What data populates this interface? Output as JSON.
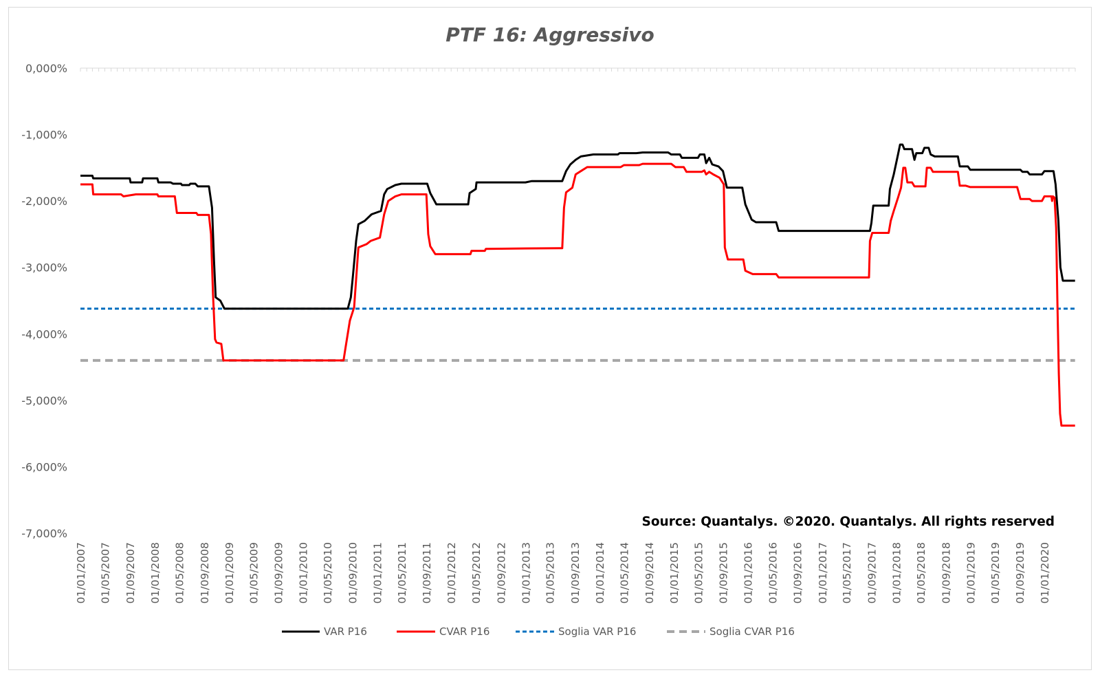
{
  "chart_data": {
    "type": "line",
    "title": "PTF 16: Aggressivo",
    "source_note": "Source: Quantalys. ©2020. Quantalys. All rights reserved",
    "y_axis": {
      "range": [
        -7,
        0
      ],
      "unit": "%",
      "tick_values": [
        0,
        -1,
        -2,
        -3,
        -4,
        -5,
        -6,
        -7
      ],
      "tick_labels": [
        "0,000%",
        "-1,000%",
        "-2,000%",
        "-3,000%",
        "-4,000%",
        "-5,000%",
        "-6,000%",
        "-7,000%"
      ]
    },
    "x_axis": {
      "range": [
        "2007-01-01",
        "2020-06-01"
      ],
      "tick_labels": [
        "01/01/2007",
        "01/05/2007",
        "01/09/2007",
        "01/01/2008",
        "01/05/2008",
        "01/09/2008",
        "01/01/2009",
        "01/05/2009",
        "01/09/2009",
        "01/01/2010",
        "01/05/2010",
        "01/09/2010",
        "01/01/2011",
        "01/05/2011",
        "01/09/2011",
        "01/01/2012",
        "01/05/2012",
        "01/09/2012",
        "01/01/2013",
        "01/05/2013",
        "01/09/2013",
        "01/01/2014",
        "01/05/2014",
        "01/09/2014",
        "01/01/2015",
        "01/05/2015",
        "01/09/2015",
        "01/01/2016",
        "01/05/2016",
        "01/09/2016",
        "01/01/2017",
        "01/05/2017",
        "01/09/2017",
        "01/01/2018",
        "01/05/2018",
        "01/09/2018",
        "01/01/2019",
        "01/05/2019",
        "01/09/2019",
        "01/01/2020"
      ]
    },
    "legend_position": "bottom",
    "grid": false,
    "series": [
      {
        "name": "VAR  P16",
        "color": "#000000",
        "style": "solid",
        "points": [
          [
            "2007-01-01",
            -1.62
          ],
          [
            "2007-03-01",
            -1.62
          ],
          [
            "2007-03-05",
            -1.66
          ],
          [
            "2007-09-01",
            -1.66
          ],
          [
            "2007-09-05",
            -1.72
          ],
          [
            "2007-11-01",
            -1.72
          ],
          [
            "2007-11-05",
            -1.66
          ],
          [
            "2008-01-15",
            -1.66
          ],
          [
            "2008-01-20",
            -1.72
          ],
          [
            "2008-03-20",
            -1.72
          ],
          [
            "2008-04-01",
            -1.74
          ],
          [
            "2008-05-10",
            -1.74
          ],
          [
            "2008-05-15",
            -1.76
          ],
          [
            "2008-06-20",
            -1.76
          ],
          [
            "2008-06-25",
            -1.74
          ],
          [
            "2008-07-20",
            -1.74
          ],
          [
            "2008-08-01",
            -1.78
          ],
          [
            "2008-09-25",
            -1.78
          ],
          [
            "2008-10-10",
            -2.1
          ],
          [
            "2008-10-20",
            -2.9
          ],
          [
            "2008-10-28",
            -3.45
          ],
          [
            "2008-11-20",
            -3.5
          ],
          [
            "2008-12-10",
            -3.62
          ],
          [
            "2010-08-10",
            -3.62
          ],
          [
            "2010-08-25",
            -3.45
          ],
          [
            "2010-09-05",
            -3.1
          ],
          [
            "2010-09-20",
            -2.6
          ],
          [
            "2010-10-01",
            -2.35
          ],
          [
            "2010-11-01",
            -2.3
          ],
          [
            "2010-12-05",
            -2.2
          ],
          [
            "2011-01-20",
            -2.15
          ],
          [
            "2011-02-05",
            -1.9
          ],
          [
            "2011-02-20",
            -1.82
          ],
          [
            "2011-04-01",
            -1.76
          ],
          [
            "2011-05-01",
            -1.74
          ],
          [
            "2011-09-05",
            -1.74
          ],
          [
            "2011-09-20",
            -1.88
          ],
          [
            "2011-10-20",
            -2.05
          ],
          [
            "2012-03-25",
            -2.05
          ],
          [
            "2012-04-01",
            -1.88
          ],
          [
            "2012-05-01",
            -1.82
          ],
          [
            "2012-05-05",
            -1.72
          ],
          [
            "2013-01-01",
            -1.72
          ],
          [
            "2013-02-01",
            -1.7
          ],
          [
            "2013-07-01",
            -1.7
          ],
          [
            "2013-07-20",
            -1.55
          ],
          [
            "2013-08-10",
            -1.45
          ],
          [
            "2013-09-05",
            -1.38
          ],
          [
            "2013-10-01",
            -1.33
          ],
          [
            "2013-12-01",
            -1.3
          ],
          [
            "2014-04-01",
            -1.3
          ],
          [
            "2014-04-10",
            -1.28
          ],
          [
            "2014-07-01",
            -1.28
          ],
          [
            "2014-08-01",
            -1.27
          ],
          [
            "2014-12-05",
            -1.27
          ],
          [
            "2014-12-20",
            -1.3
          ],
          [
            "2015-02-01",
            -1.3
          ],
          [
            "2015-02-10",
            -1.35
          ],
          [
            "2015-05-01",
            -1.35
          ],
          [
            "2015-05-10",
            -1.3
          ],
          [
            "2015-06-01",
            -1.3
          ],
          [
            "2015-06-10",
            -1.43
          ],
          [
            "2015-06-25",
            -1.35
          ],
          [
            "2015-07-10",
            -1.45
          ],
          [
            "2015-08-10",
            -1.48
          ],
          [
            "2015-09-01",
            -1.55
          ],
          [
            "2015-09-20",
            -1.8
          ],
          [
            "2015-12-05",
            -1.8
          ],
          [
            "2015-12-20",
            -2.05
          ],
          [
            "2016-01-20",
            -2.28
          ],
          [
            "2016-02-10",
            -2.32
          ],
          [
            "2016-05-20",
            -2.32
          ],
          [
            "2016-06-01",
            -2.45
          ],
          [
            "2017-08-25",
            -2.45
          ],
          [
            "2017-09-01",
            -2.33
          ],
          [
            "2017-09-10",
            -2.07
          ],
          [
            "2017-11-25",
            -2.07
          ],
          [
            "2017-12-01",
            -1.82
          ],
          [
            "2017-12-20",
            -1.6
          ],
          [
            "2018-01-10",
            -1.3
          ],
          [
            "2018-01-20",
            -1.15
          ],
          [
            "2018-02-01",
            -1.15
          ],
          [
            "2018-02-10",
            -1.22
          ],
          [
            "2018-03-20",
            -1.22
          ],
          [
            "2018-04-01",
            -1.38
          ],
          [
            "2018-04-10",
            -1.28
          ],
          [
            "2018-05-10",
            -1.28
          ],
          [
            "2018-05-20",
            -1.2
          ],
          [
            "2018-06-10",
            -1.2
          ],
          [
            "2018-06-20",
            -1.3
          ],
          [
            "2018-07-10",
            -1.33
          ],
          [
            "2018-11-01",
            -1.33
          ],
          [
            "2018-11-10",
            -1.48
          ],
          [
            "2018-12-20",
            -1.48
          ],
          [
            "2019-01-01",
            -1.53
          ],
          [
            "2019-09-05",
            -1.53
          ],
          [
            "2019-09-15",
            -1.56
          ],
          [
            "2019-10-10",
            -1.56
          ],
          [
            "2019-10-20",
            -1.6
          ],
          [
            "2019-12-20",
            -1.6
          ],
          [
            "2020-01-01",
            -1.55
          ],
          [
            "2020-02-15",
            -1.55
          ],
          [
            "2020-02-25",
            -1.75
          ],
          [
            "2020-03-10",
            -2.3
          ],
          [
            "2020-03-20",
            -3.0
          ],
          [
            "2020-04-01",
            -3.2
          ],
          [
            "2020-05-31",
            -3.2
          ]
        ]
      },
      {
        "name": "CVAR  P16",
        "color": "#ff0000",
        "style": "solid",
        "points": [
          [
            "2007-01-01",
            -1.75
          ],
          [
            "2007-03-01",
            -1.75
          ],
          [
            "2007-03-05",
            -1.9
          ],
          [
            "2007-07-20",
            -1.9
          ],
          [
            "2007-08-01",
            -1.93
          ],
          [
            "2007-10-01",
            -1.9
          ],
          [
            "2008-01-15",
            -1.9
          ],
          [
            "2008-01-20",
            -1.93
          ],
          [
            "2008-04-10",
            -1.93
          ],
          [
            "2008-04-20",
            -2.18
          ],
          [
            "2008-07-25",
            -2.18
          ],
          [
            "2008-08-01",
            -2.21
          ],
          [
            "2008-09-25",
            -2.21
          ],
          [
            "2008-10-05",
            -2.5
          ],
          [
            "2008-10-15",
            -3.4
          ],
          [
            "2008-10-25",
            -4.08
          ],
          [
            "2008-11-01",
            -4.13
          ],
          [
            "2008-11-25",
            -4.15
          ],
          [
            "2008-12-05",
            -4.4
          ],
          [
            "2010-07-20",
            -4.4
          ],
          [
            "2010-07-30",
            -4.2
          ],
          [
            "2010-08-20",
            -3.8
          ],
          [
            "2010-09-10",
            -3.6
          ],
          [
            "2010-10-01",
            -2.7
          ],
          [
            "2010-11-10",
            -2.65
          ],
          [
            "2010-12-01",
            -2.6
          ],
          [
            "2011-01-15",
            -2.55
          ],
          [
            "2011-02-05",
            -2.2
          ],
          [
            "2011-02-25",
            -2.0
          ],
          [
            "2011-04-01",
            -1.93
          ],
          [
            "2011-05-01",
            -1.9
          ],
          [
            "2011-09-01",
            -1.9
          ],
          [
            "2011-09-10",
            -2.5
          ],
          [
            "2011-09-20",
            -2.68
          ],
          [
            "2011-10-15",
            -2.8
          ],
          [
            "2012-04-05",
            -2.8
          ],
          [
            "2012-04-10",
            -2.75
          ],
          [
            "2012-06-15",
            -2.75
          ],
          [
            "2012-06-20",
            -2.72
          ],
          [
            "2013-06-15",
            -2.71
          ],
          [
            "2013-07-01",
            -2.71
          ],
          [
            "2013-07-10",
            -2.1
          ],
          [
            "2013-07-20",
            -1.87
          ],
          [
            "2013-08-20",
            -1.8
          ],
          [
            "2013-09-05",
            -1.6
          ],
          [
            "2013-10-01",
            -1.55
          ],
          [
            "2013-11-01",
            -1.49
          ],
          [
            "2014-04-15",
            -1.49
          ],
          [
            "2014-05-01",
            -1.46
          ],
          [
            "2014-07-15",
            -1.46
          ],
          [
            "2014-08-01",
            -1.44
          ],
          [
            "2014-12-20",
            -1.44
          ],
          [
            "2015-01-10",
            -1.49
          ],
          [
            "2015-02-20",
            -1.49
          ],
          [
            "2015-03-05",
            -1.56
          ],
          [
            "2015-05-20",
            -1.56
          ],
          [
            "2015-06-01",
            -1.54
          ],
          [
            "2015-06-10",
            -1.6
          ],
          [
            "2015-06-25",
            -1.56
          ],
          [
            "2015-07-15",
            -1.6
          ],
          [
            "2015-08-15",
            -1.65
          ],
          [
            "2015-09-05",
            -1.75
          ],
          [
            "2015-09-10",
            -2.7
          ],
          [
            "2015-09-25",
            -2.88
          ],
          [
            "2015-12-10",
            -2.88
          ],
          [
            "2015-12-20",
            -3.05
          ],
          [
            "2016-01-25",
            -3.1
          ],
          [
            "2016-05-20",
            -3.1
          ],
          [
            "2016-06-01",
            -3.15
          ],
          [
            "2017-08-20",
            -3.15
          ],
          [
            "2017-08-25",
            -2.6
          ],
          [
            "2017-09-05",
            -2.48
          ],
          [
            "2017-11-25",
            -2.48
          ],
          [
            "2017-12-05",
            -2.3
          ],
          [
            "2017-12-20",
            -2.15
          ],
          [
            "2018-01-10",
            -1.95
          ],
          [
            "2018-01-25",
            -1.8
          ],
          [
            "2018-02-05",
            -1.5
          ],
          [
            "2018-02-15",
            -1.5
          ],
          [
            "2018-02-25",
            -1.72
          ],
          [
            "2018-03-20",
            -1.72
          ],
          [
            "2018-04-01",
            -1.78
          ],
          [
            "2018-05-25",
            -1.78
          ],
          [
            "2018-06-01",
            -1.5
          ],
          [
            "2018-06-20",
            -1.5
          ],
          [
            "2018-07-01",
            -1.56
          ],
          [
            "2018-11-01",
            -1.56
          ],
          [
            "2018-11-10",
            -1.77
          ],
          [
            "2018-12-10",
            -1.77
          ],
          [
            "2019-01-01",
            -1.79
          ],
          [
            "2019-08-20",
            -1.79
          ],
          [
            "2019-09-05",
            -1.97
          ],
          [
            "2019-10-20",
            -1.97
          ],
          [
            "2019-11-01",
            -2.0
          ],
          [
            "2019-12-20",
            -2.0
          ],
          [
            "2020-01-01",
            -1.93
          ],
          [
            "2020-02-05",
            -1.93
          ],
          [
            "2020-02-08",
            -2.0
          ],
          [
            "2020-02-12",
            -1.93
          ],
          [
            "2020-02-20",
            -1.95
          ],
          [
            "2020-02-28",
            -2.4
          ],
          [
            "2020-03-05",
            -3.5
          ],
          [
            "2020-03-12",
            -4.6
          ],
          [
            "2020-03-18",
            -5.2
          ],
          [
            "2020-03-25",
            -5.38
          ],
          [
            "2020-05-31",
            -5.38
          ]
        ]
      },
      {
        "name": "Soglia VAR  P16",
        "color": "#0070c0",
        "style": "dotted",
        "points": [
          [
            "2007-01-01",
            -3.62
          ],
          [
            "2020-05-31",
            -3.62
          ]
        ]
      },
      {
        "name": "Soglia CVAR  P16",
        "color": "#a6a6a6",
        "style": "dashed",
        "points": [
          [
            "2007-01-01",
            -4.4
          ],
          [
            "2020-05-31",
            -4.4
          ]
        ]
      }
    ]
  }
}
